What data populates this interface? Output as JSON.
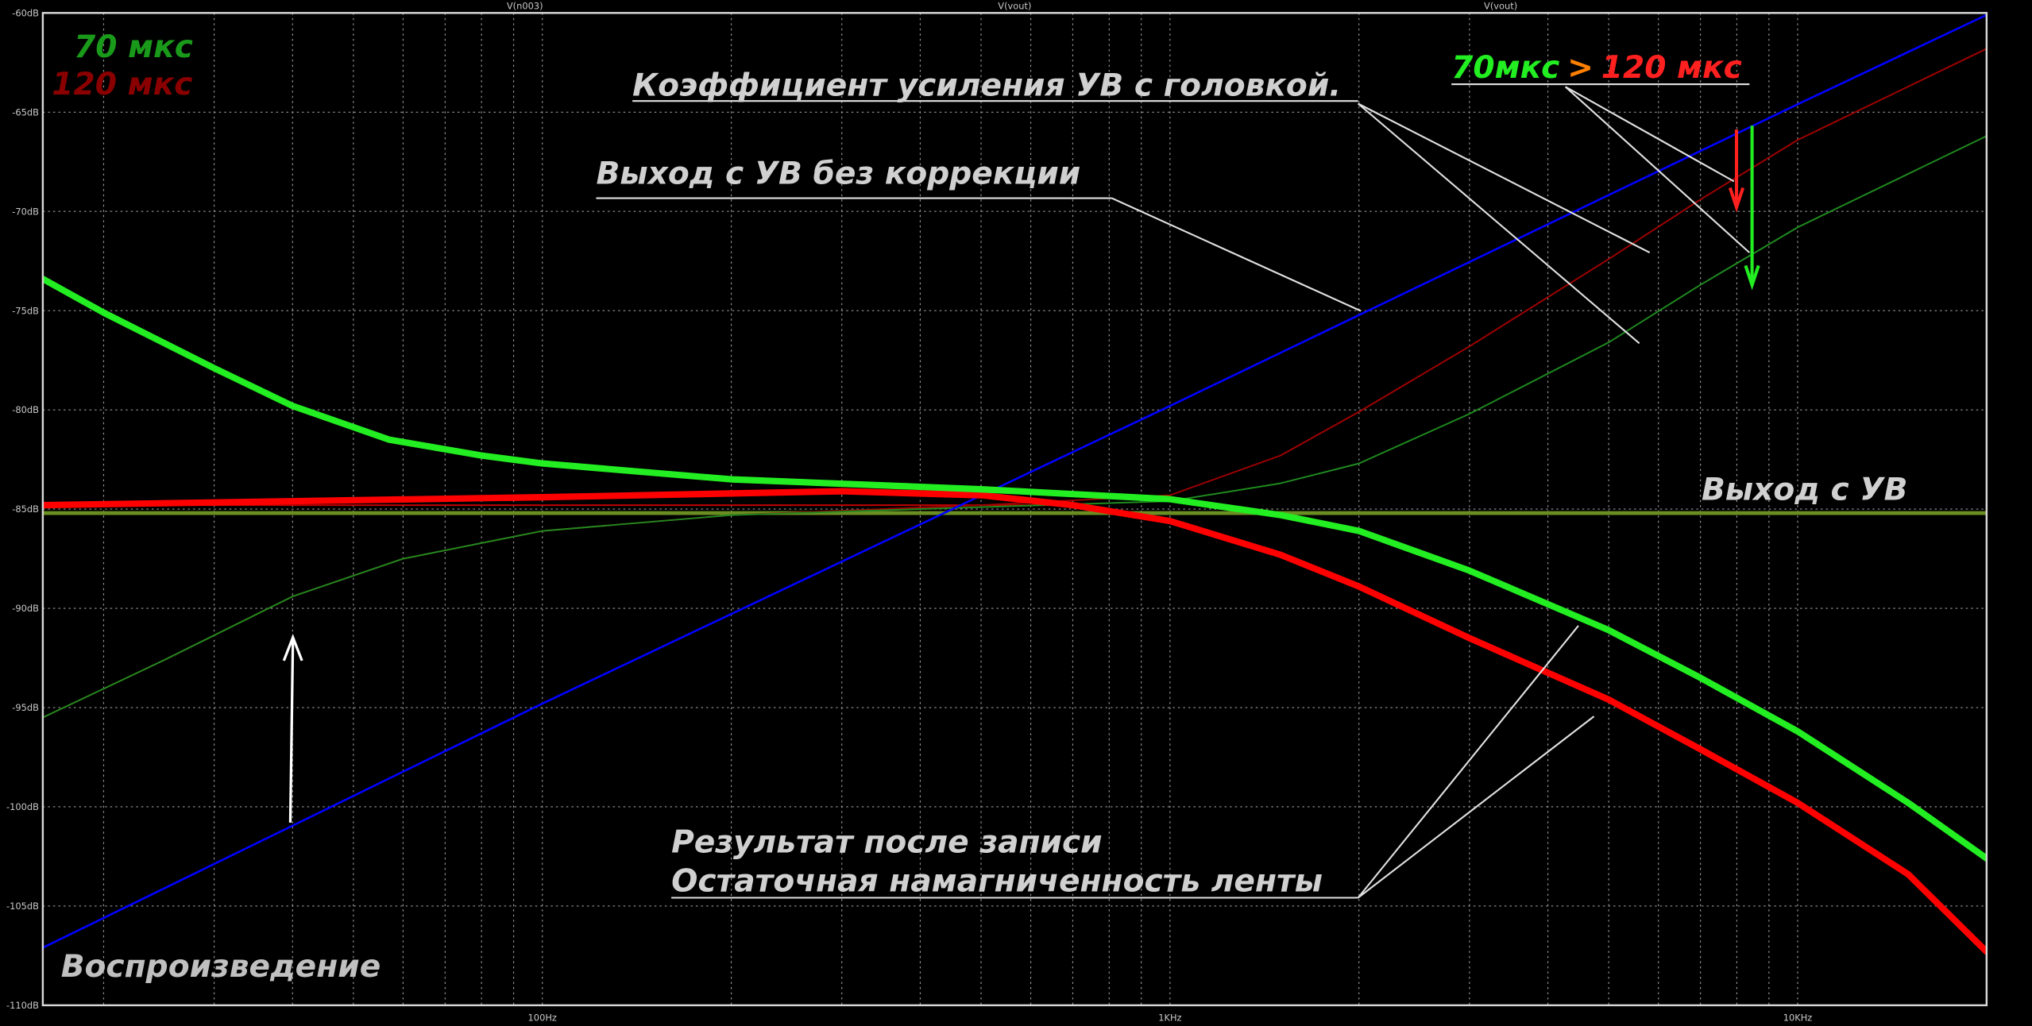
{
  "chart_data": {
    "type": "line",
    "x_scale": "log",
    "grid": true,
    "xlim": [
      16,
      20000
    ],
    "ylim": [
      -110,
      -60
    ],
    "xticks": [
      {
        "value": 100,
        "label": "100Hz"
      },
      {
        "value": 1000,
        "label": "1KHz"
      },
      {
        "value": 10000,
        "label": "10KHz"
      }
    ],
    "x_minor_ticks": [
      20,
      30,
      40,
      50,
      60,
      70,
      80,
      90,
      200,
      300,
      400,
      500,
      600,
      700,
      800,
      900,
      2000,
      3000,
      4000,
      5000,
      6000,
      7000,
      8000,
      9000
    ],
    "yticks": [
      {
        "value": -60,
        "label": "-60dB"
      },
      {
        "value": -65,
        "label": "-65dB"
      },
      {
        "value": -70,
        "label": "-70dB"
      },
      {
        "value": -75,
        "label": "-75dB"
      },
      {
        "value": -80,
        "label": "-80dB"
      },
      {
        "value": -85,
        "label": "-85dB"
      },
      {
        "value": -90,
        "label": "-90dB"
      },
      {
        "value": -95,
        "label": "-95dB"
      },
      {
        "value": -100,
        "label": "-100dB"
      },
      {
        "value": -105,
        "label": "-105dB"
      },
      {
        "value": -110,
        "label": "-110dB"
      }
    ],
    "trace_labels": [
      {
        "text": "V(n003)",
        "color": "#3cc83c"
      },
      {
        "text": "V(vout)",
        "color": "#9aa08a"
      },
      {
        "text": "V(vout)",
        "color": "#9aa08a"
      }
    ],
    "series": [
      {
        "color": "#6b8e23",
        "width": 3,
        "x": [
          16,
          20000
        ],
        "values": [
          -85.2,
          -85.2
        ]
      },
      {
        "color": "#c00000",
        "width": 1.2,
        "x": [
          16,
          700
        ],
        "values": [
          -84.8,
          -84.8
        ]
      },
      {
        "color": "#a00000",
        "width": 1.2,
        "x": [
          16,
          25,
          40,
          60,
          100,
          200,
          500,
          1000,
          1500,
          2000,
          3000,
          5000,
          7000,
          10000,
          20000
        ],
        "values": [
          -95.5,
          -92.6,
          -89.4,
          -87.5,
          -86.1,
          -85.3,
          -84.8,
          -84.3,
          -82.3,
          -80.1,
          -76.8,
          -72.4,
          -69.4,
          -66.4,
          -61.8
        ]
      },
      {
        "color": "#1f8a1f",
        "width": 1.2,
        "x": [
          16,
          25,
          40,
          60,
          100,
          200,
          500,
          1000,
          1500,
          2000,
          3000,
          5000,
          7000,
          10000,
          20000
        ],
        "values": [
          -95.5,
          -92.6,
          -89.4,
          -87.5,
          -86.1,
          -85.3,
          -84.9,
          -84.6,
          -83.7,
          -82.7,
          -80.2,
          -76.6,
          -73.7,
          -70.8,
          -66.2
        ]
      },
      {
        "color": "#0000ff",
        "width": 1.6,
        "x": [
          16,
          100,
          1000,
          10000,
          20000
        ],
        "values": [
          -107.1,
          -94.8,
          -79.8,
          -64.6,
          -60.1
        ]
      },
      {
        "color": "#ff0000",
        "width": 5,
        "x": [
          16,
          100,
          300,
          500,
          700,
          1000,
          1500,
          2000,
          3000,
          5000,
          7000,
          10000,
          15000,
          20000
        ],
        "values": [
          -84.8,
          -84.4,
          -84.1,
          -84.3,
          -84.8,
          -85.6,
          -87.3,
          -88.9,
          -91.5,
          -94.6,
          -97.1,
          -99.8,
          -103.4,
          -107.3
        ]
      },
      {
        "color": "#22ee22",
        "width": 5,
        "x": [
          16,
          20,
          30,
          40,
          57,
          80,
          100,
          200,
          500,
          1000,
          1500,
          2000,
          3000,
          5000,
          7000,
          10000,
          15000,
          20000
        ],
        "values": [
          -73.4,
          -75.1,
          -77.9,
          -79.8,
          -81.5,
          -82.3,
          -82.7,
          -83.5,
          -84.0,
          -84.5,
          -85.3,
          -86.1,
          -88.1,
          -91.1,
          -93.5,
          -96.2,
          -99.8,
          -102.6
        ]
      }
    ],
    "annotations": {
      "tau70": "70 мкс",
      "tau120": "120 мкс",
      "gain": "Коэффициент усиления УВ с головкой.",
      "cmp_a": "70мкс",
      "cmp_op": ">",
      "cmp_b": "120 мкс",
      "raw": "Выход с УВ без коррекции",
      "out": "Выход с УВ",
      "result": "Результат после записи",
      "remanence": "Остаточная намагниченность ленты",
      "playback": "Воспроизведение"
    }
  }
}
